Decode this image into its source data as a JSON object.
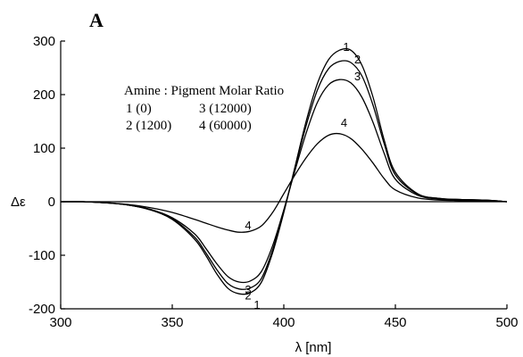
{
  "chart_data": {
    "type": "line",
    "panel_label": "A",
    "title": "",
    "xlabel": "λ [nm]",
    "ylabel": "Δε",
    "xlim": [
      300,
      500
    ],
    "ylim": [
      -200,
      300
    ],
    "x_ticks": [
      300,
      350,
      400,
      450,
      500
    ],
    "y_ticks": [
      -200,
      -100,
      0,
      100,
      200,
      300
    ],
    "zero_line": true,
    "grid": false,
    "legend": {
      "title": "Amine : Pigment Molar Ratio",
      "entries": [
        "1 (0)",
        "2 (1200)",
        "3 (12000)",
        "4 (60000)"
      ],
      "placement": "upper-left"
    },
    "x": [
      300,
      310,
      320,
      330,
      340,
      350,
      360,
      365,
      370,
      375,
      380,
      385,
      390,
      395,
      400,
      405,
      410,
      415,
      420,
      425,
      430,
      435,
      440,
      445,
      450,
      460,
      470,
      480,
      490,
      500
    ],
    "series": [
      {
        "name": "1",
        "label_at": [
          430,
          1,
          388,
          -192
        ],
        "values": [
          0,
          0,
          -2,
          -6,
          -15,
          -33,
          -70,
          -100,
          -135,
          -162,
          -172,
          -170,
          -150,
          -95,
          -20,
          65,
          150,
          220,
          265,
          283,
          283,
          255,
          195,
          115,
          55,
          15,
          6,
          4,
          3,
          0
        ]
      },
      {
        "name": "2",
        "label_at": [
          433,
          1,
          384,
          -174
        ],
        "values": [
          0,
          0,
          -2,
          -6,
          -15,
          -32,
          -66,
          -95,
          -127,
          -153,
          -163,
          -161,
          -143,
          -90,
          -18,
          63,
          142,
          208,
          248,
          262,
          260,
          235,
          180,
          108,
          50,
          14,
          6,
          4,
          3,
          0
        ]
      },
      {
        "name": "3",
        "label_at": [
          433,
          1,
          384,
          -163
        ],
        "values": [
          0,
          0,
          -2,
          -6,
          -14,
          -30,
          -60,
          -87,
          -116,
          -140,
          -150,
          -148,
          -130,
          -82,
          -15,
          58,
          128,
          185,
          218,
          228,
          222,
          195,
          148,
          90,
          42,
          12,
          5,
          4,
          3,
          0
        ]
      },
      {
        "name": "4",
        "label_at": [
          426,
          1,
          384,
          -43
        ],
        "values": [
          0,
          0,
          -2,
          -5,
          -11,
          -20,
          -33,
          -40,
          -47,
          -53,
          -57,
          -55,
          -45,
          -20,
          15,
          50,
          82,
          108,
          124,
          127,
          118,
          98,
          72,
          43,
          22,
          7,
          3,
          2,
          1,
          0
        ]
      }
    ]
  }
}
